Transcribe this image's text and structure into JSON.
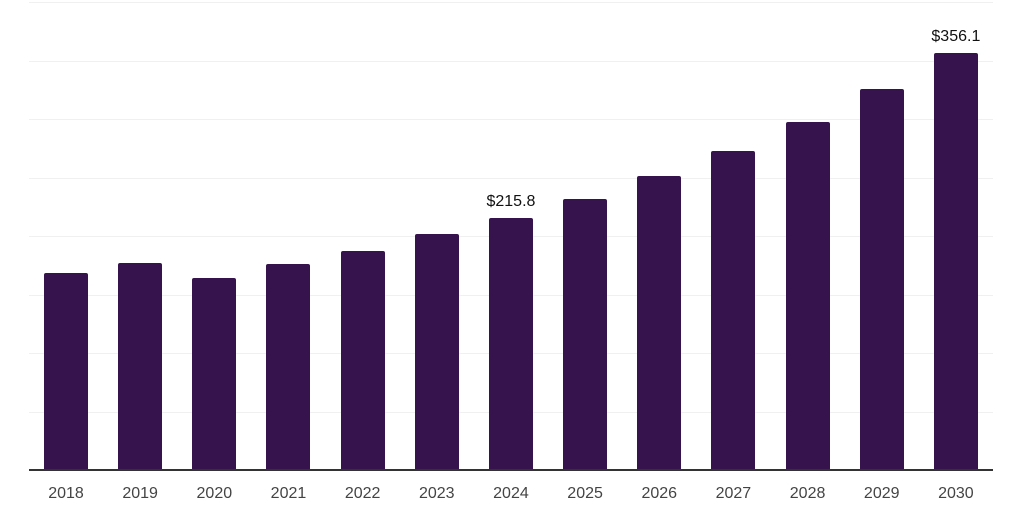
{
  "chart_data": {
    "type": "bar",
    "title": "",
    "xlabel": "",
    "ylabel": "",
    "categories": [
      "2018",
      "2019",
      "2020",
      "2021",
      "2022",
      "2023",
      "2024",
      "2025",
      "2026",
      "2027",
      "2028",
      "2029",
      "2030"
    ],
    "values": [
      168.6,
      177.2,
      164.0,
      175.9,
      187.6,
      201.3,
      215.8,
      232.0,
      251.2,
      273.0,
      297.4,
      325.3,
      356.1
    ],
    "data_labels": [
      {
        "category": "2024",
        "text": "$215.8"
      },
      {
        "category": "2030",
        "text": "$356.1"
      }
    ],
    "ylim": [
      0,
      400
    ],
    "gridline_step": 50,
    "grid": true,
    "legend": false,
    "y_axis_labels_visible": false,
    "colors": {
      "bar": "#36134D",
      "axis_line": "#333333",
      "gridline": "#f0f0f0",
      "tick_label": "#444444",
      "value_label": "#111111",
      "background": "#ffffff"
    }
  }
}
